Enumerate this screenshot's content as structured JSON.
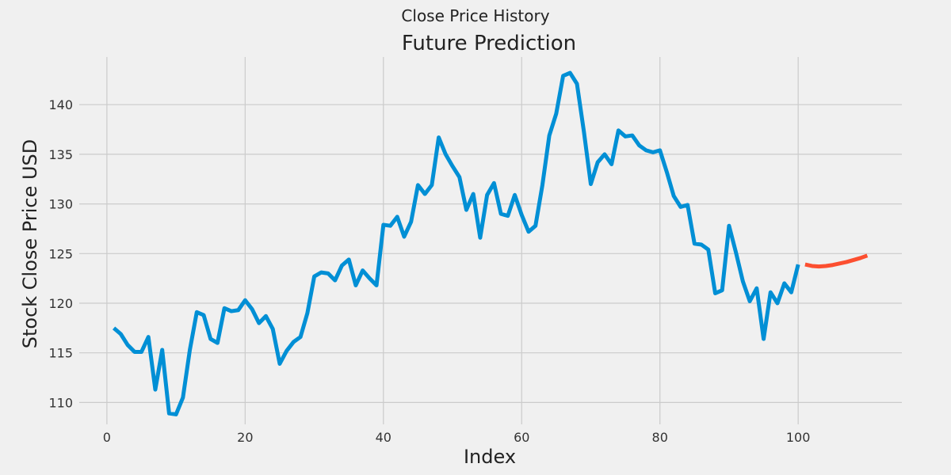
{
  "chart_data": {
    "type": "line",
    "suptitle": "Close Price History",
    "title": "Future Prediction",
    "xlabel": "Index",
    "ylabel": "Stock Close Price USD",
    "xlim": [
      -4,
      115
    ],
    "ylim": [
      107.8,
      144.8
    ],
    "xticks": [
      0,
      20,
      40,
      60,
      80,
      100
    ],
    "yticks": [
      110,
      115,
      120,
      125,
      130,
      135,
      140
    ],
    "grid": true,
    "series": [
      {
        "color": "#008fd5",
        "x": [
          1,
          2,
          3,
          4,
          5,
          6,
          7,
          8,
          9,
          10,
          11,
          12,
          13,
          14,
          15,
          16,
          17,
          18,
          19,
          20,
          21,
          22,
          23,
          24,
          25,
          26,
          27,
          28,
          29,
          30,
          31,
          32,
          33,
          34,
          35,
          36,
          37,
          38,
          39,
          40,
          41,
          42,
          43,
          44,
          45,
          46,
          47,
          48,
          49,
          50,
          51,
          52,
          53,
          54,
          55,
          56,
          57,
          58,
          59,
          60,
          61,
          62,
          63,
          64,
          65,
          66,
          67,
          68,
          69,
          70,
          71,
          72,
          73,
          74,
          75,
          76,
          77,
          78,
          79,
          80,
          81,
          82,
          83,
          84,
          85,
          86,
          87,
          88,
          89,
          90,
          91,
          92,
          93,
          94,
          95,
          96,
          97,
          98,
          99,
          100
        ],
        "values": [
          117.5,
          116.9,
          115.8,
          115.1,
          115.1,
          116.6,
          111.3,
          115.3,
          108.9,
          108.8,
          110.5,
          115.3,
          119.1,
          118.8,
          116.4,
          116.0,
          119.5,
          119.2,
          119.3,
          120.3,
          119.4,
          118.0,
          118.7,
          117.4,
          113.9,
          115.2,
          116.1,
          116.6,
          119.0,
          122.7,
          123.1,
          123.0,
          122.3,
          123.8,
          124.4,
          121.8,
          123.3,
          122.5,
          121.8,
          127.9,
          127.8,
          128.7,
          126.7,
          128.2,
          131.9,
          131.0,
          131.9,
          136.7,
          135.0,
          133.8,
          132.7,
          129.4,
          131.0,
          126.6,
          130.9,
          132.1,
          129.0,
          128.8,
          130.9,
          128.9,
          127.2,
          127.8,
          131.9,
          136.9,
          139.1,
          142.9,
          143.2,
          142.1,
          137.3,
          132.0,
          134.2,
          135.0,
          134.0,
          137.4,
          136.8,
          136.9,
          135.9,
          135.4,
          135.2,
          135.4,
          133.2,
          130.8,
          129.7,
          129.9,
          126.0,
          125.9,
          125.4,
          121.0,
          121.3,
          127.8,
          125.1,
          122.2,
          120.2,
          121.5,
          116.4,
          121.1,
          120.0,
          122.0,
          121.1,
          123.9
        ]
      },
      {
        "color": "#fc4f30",
        "x": [
          101,
          102,
          103,
          104,
          105,
          106,
          107,
          108,
          109,
          110
        ],
        "values": [
          123.9,
          123.75,
          123.7,
          123.75,
          123.85,
          124.0,
          124.15,
          124.35,
          124.55,
          124.8
        ]
      }
    ]
  }
}
